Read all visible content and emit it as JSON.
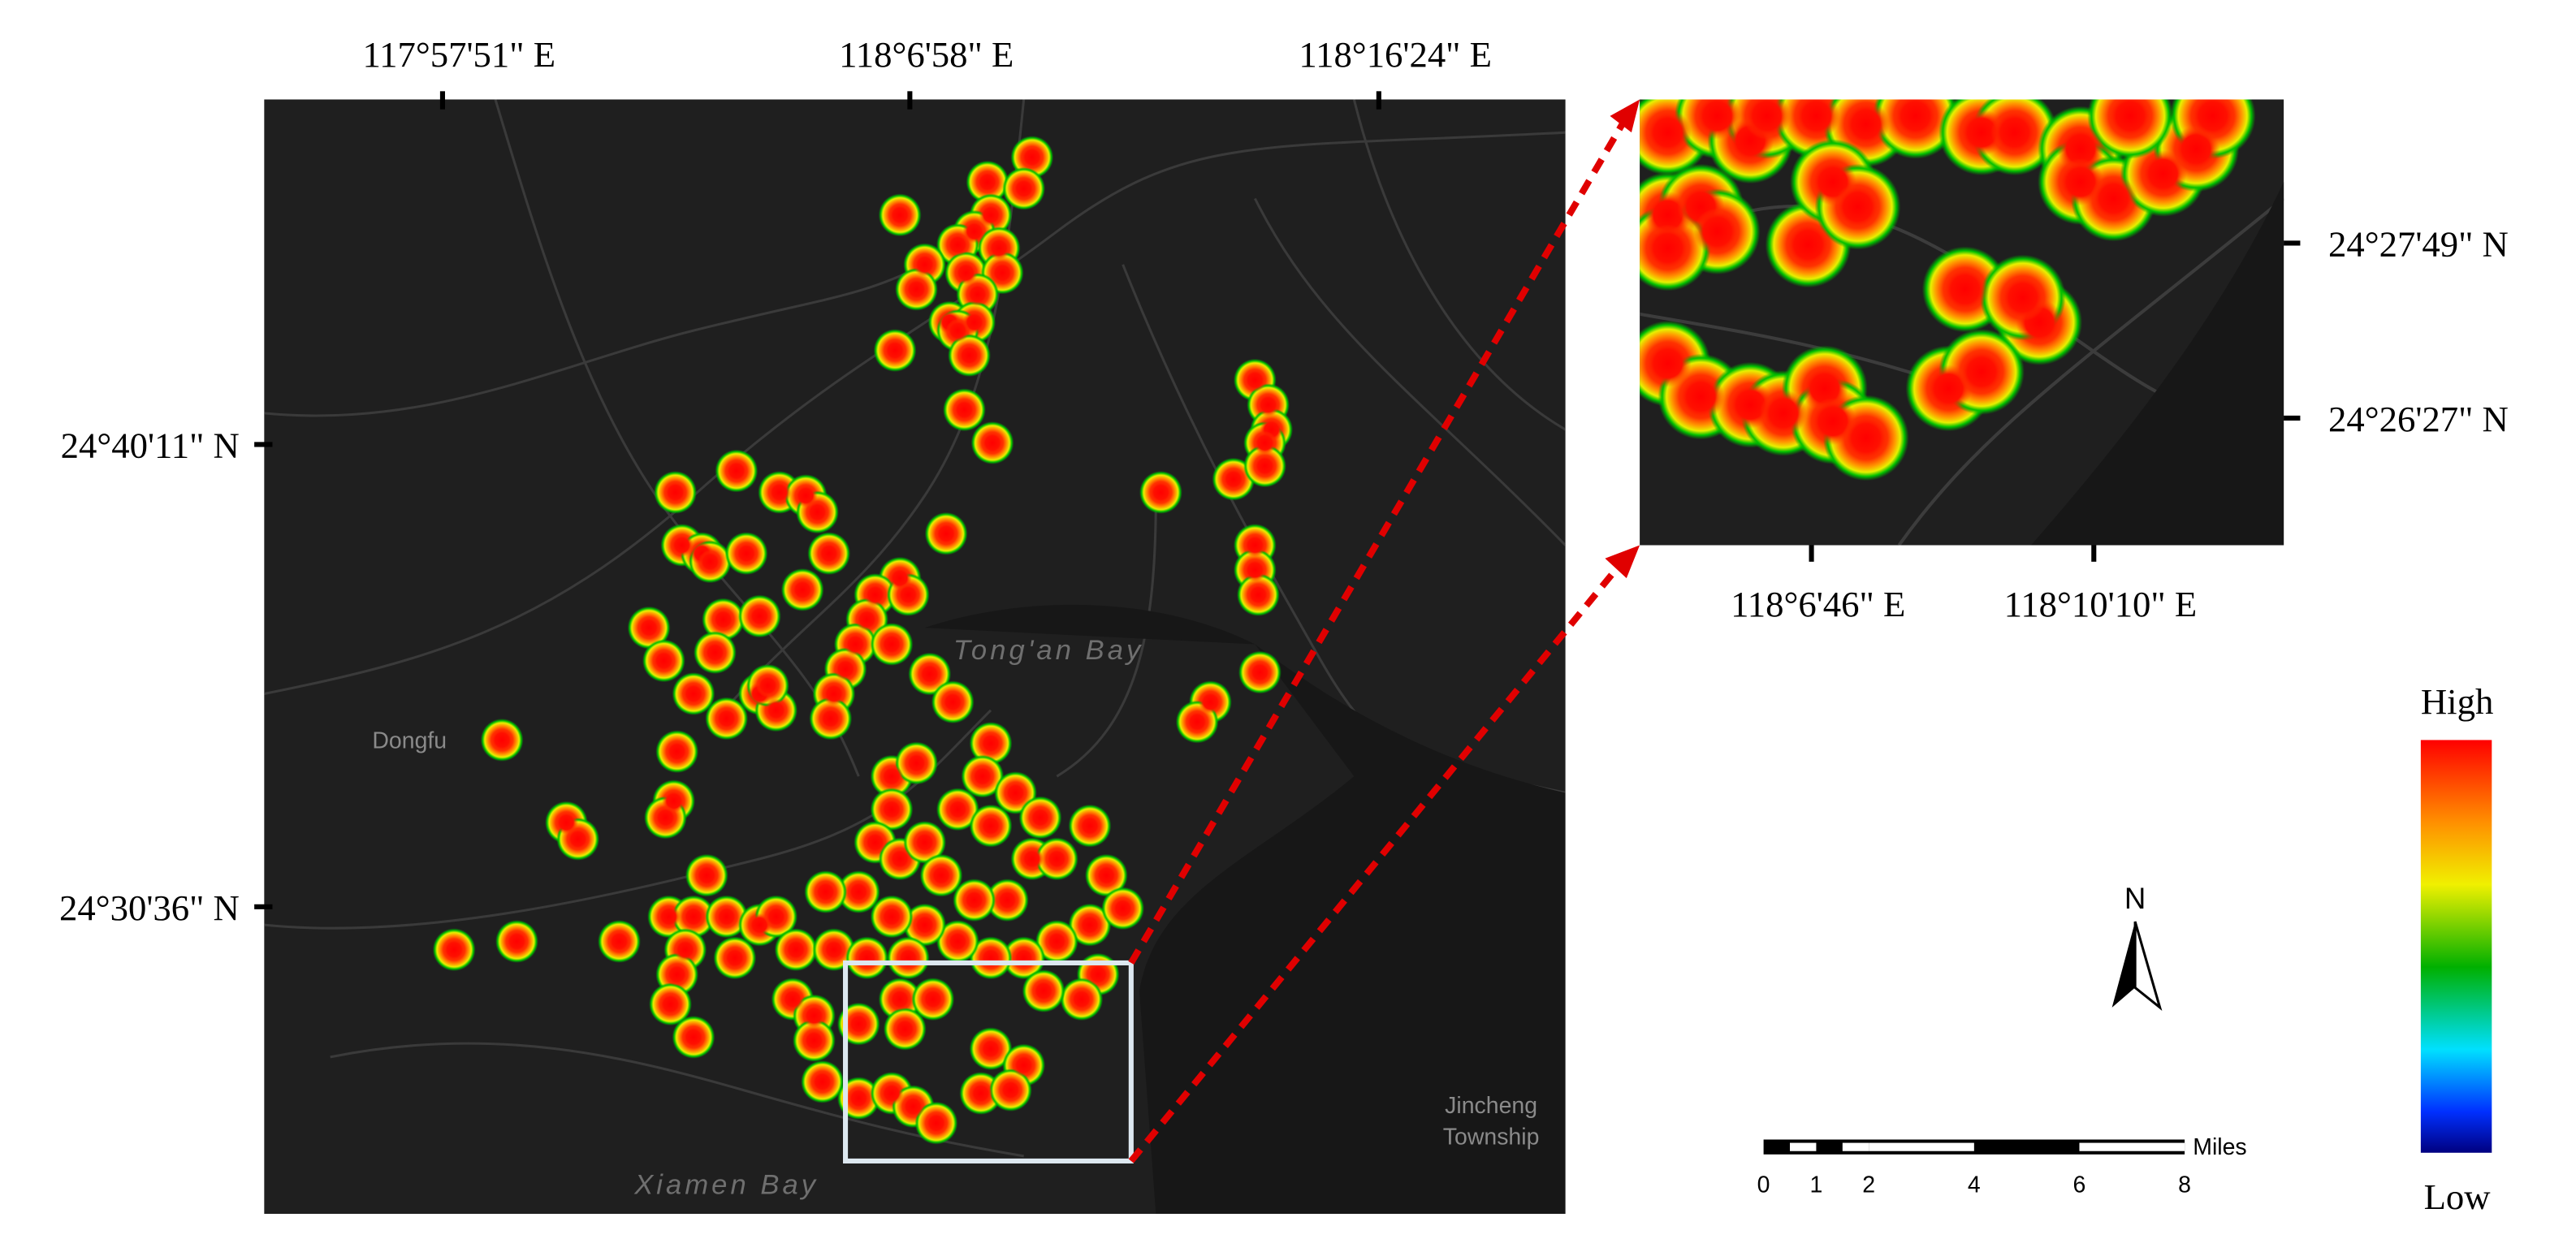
{
  "map": {
    "lon_labels": [
      "117°57'51\"  E",
      "118°6'58\"  E",
      "118°16'24\"  E"
    ],
    "lat_labels": [
      "24°40'11\"  N",
      "24°30'36\"  N"
    ],
    "place_names": {
      "dongfu": "Dongfu",
      "tongan_bay": "Tong'an Bay",
      "xiamen_bay": "Xiamen Bay",
      "jincheng": [
        "Jincheng",
        "Township"
      ]
    }
  },
  "inset": {
    "lon_labels": [
      "118°6'46\"  E",
      "118°10'10\"  E"
    ],
    "lat_labels": [
      "24°27'49\"  N",
      "24°26'27\"  N"
    ]
  },
  "legend": {
    "high": "High",
    "low": "Low"
  },
  "north_arrow": "N",
  "scale_bar": {
    "ticks": [
      0,
      1,
      2,
      4,
      6,
      8
    ],
    "unit": "Miles"
  }
}
